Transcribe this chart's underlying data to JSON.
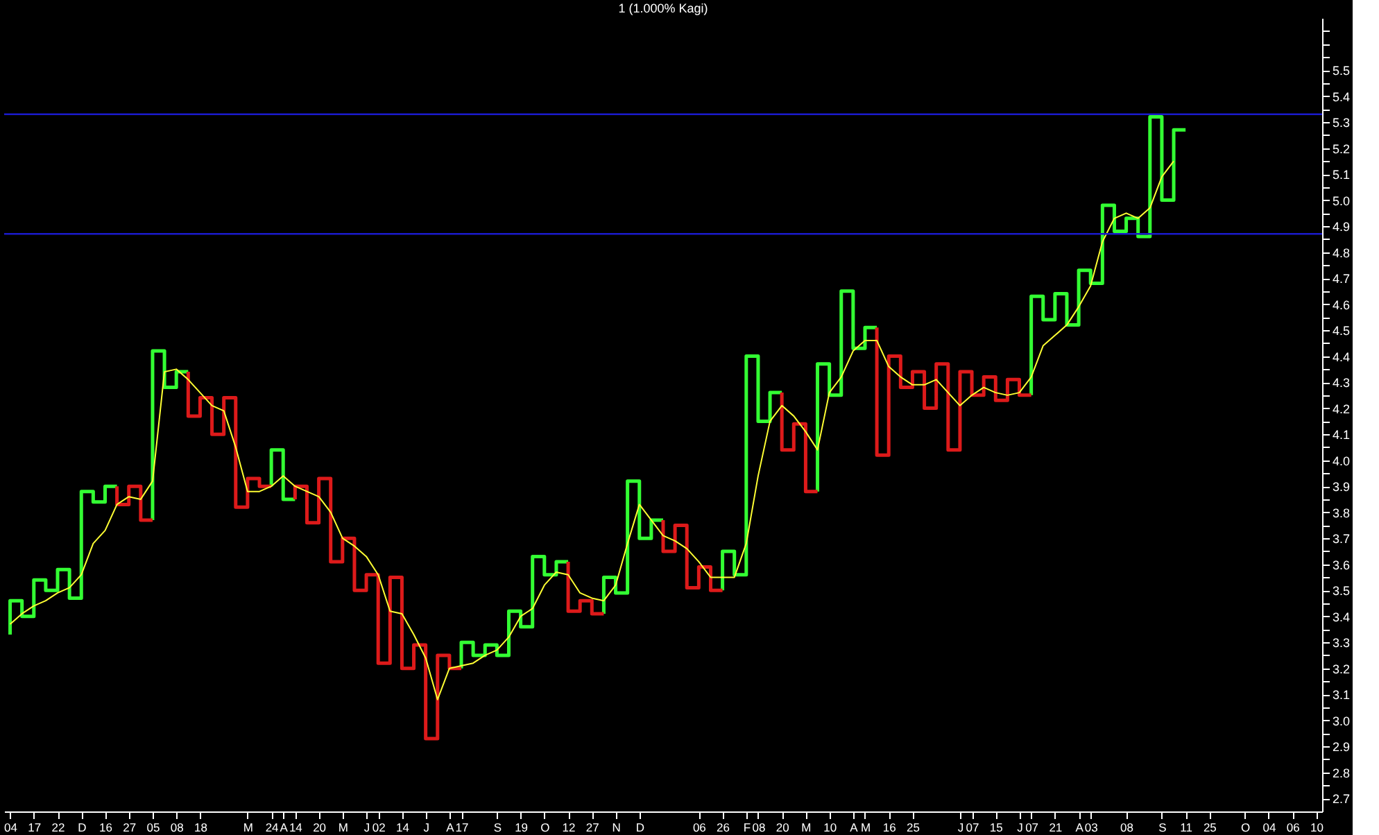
{
  "chart_data": {
    "type": "step",
    "title": "1 (1.000% Kagi)",
    "categories": [
      "04",
      null,
      "17",
      null,
      "22",
      null,
      "D",
      null,
      "16",
      null,
      "27",
      null,
      "05",
      null,
      "08",
      null,
      "18",
      null,
      null,
      null,
      "M",
      null,
      "24",
      "A",
      "14",
      null,
      "20",
      null,
      "M",
      null,
      "J",
      "02",
      null,
      "14",
      null,
      "J",
      null,
      "A",
      "17",
      null,
      null,
      "S",
      null,
      "19",
      null,
      "O",
      null,
      "12",
      null,
      "27",
      null,
      "N",
      null,
      "D",
      null,
      null,
      null,
      null,
      "06",
      null,
      "26",
      null,
      "F",
      "08",
      null,
      "20",
      null,
      "M",
      null,
      "10",
      null,
      "A",
      "M",
      null,
      "16",
      null,
      "25",
      null,
      null,
      null,
      "J",
      "07",
      null,
      "15",
      null,
      "J",
      "07",
      null,
      "21",
      null,
      "A",
      "03",
      null,
      null,
      "08",
      null,
      null,
      "S",
      null,
      "11",
      null,
      "25",
      null,
      null,
      "O",
      null,
      "04",
      null,
      "06",
      null,
      "10"
    ],
    "series": [
      {
        "color": "#33ff33",
        "values": [
          3.33,
          3.46,
          3.4,
          3.54,
          3.5,
          3.58,
          3.47,
          3.88,
          3.84,
          3.9,
          null,
          null,
          3.77,
          4.42,
          4.28,
          4.34,
          null,
          null,
          null,
          null,
          null,
          null,
          3.9,
          4.04,
          3.85,
          null,
          null,
          null,
          null,
          null,
          null,
          null,
          null,
          null,
          null,
          null,
          null,
          null,
          3.2,
          3.3,
          3.25,
          3.29,
          3.25,
          3.42,
          3.36,
          3.63,
          3.56,
          3.61,
          null,
          null,
          3.41,
          3.55,
          3.49,
          3.92,
          3.7,
          3.77,
          null,
          null,
          null,
          null,
          3.5,
          3.65,
          3.56,
          4.4,
          4.15,
          4.26,
          null,
          null,
          3.88,
          4.37,
          4.25,
          4.65,
          4.43,
          4.51,
          null,
          null,
          null,
          null,
          null,
          null,
          null,
          null,
          null,
          null,
          null,
          null,
          4.25,
          4.63,
          4.54,
          4.64,
          4.52,
          4.73,
          4.68,
          4.98,
          4.88,
          4.93,
          4.86,
          5.32,
          5.0,
          5.27,
          null,
          null,
          null,
          null,
          null,
          null,
          null,
          null,
          null,
          null,
          null
        ]
      },
      {
        "color": "#dd1a1a",
        "values": [
          null,
          null,
          null,
          null,
          null,
          null,
          null,
          null,
          null,
          3.9,
          3.83,
          3.9,
          3.77,
          null,
          null,
          4.34,
          4.17,
          4.24,
          4.1,
          4.24,
          3.82,
          3.93,
          3.9,
          null,
          3.85,
          3.9,
          3.76,
          3.93,
          3.61,
          3.7,
          3.5,
          3.56,
          3.22,
          3.55,
          3.2,
          3.29,
          2.93,
          3.25,
          3.2,
          null,
          null,
          null,
          null,
          null,
          null,
          null,
          null,
          3.61,
          3.42,
          3.46,
          3.41,
          null,
          null,
          null,
          null,
          3.77,
          3.65,
          3.75,
          3.51,
          3.59,
          3.5,
          null,
          null,
          null,
          null,
          4.26,
          4.04,
          4.14,
          3.88,
          null,
          null,
          null,
          null,
          4.51,
          4.02,
          4.4,
          4.28,
          4.34,
          4.2,
          4.37,
          4.04,
          4.34,
          4.25,
          4.32,
          4.23,
          4.31,
          4.25,
          null,
          null,
          null,
          null,
          null,
          null,
          null,
          null,
          null,
          null,
          null,
          null,
          null,
          null,
          null,
          null,
          null,
          null,
          null,
          null,
          null,
          null,
          null,
          null
        ]
      },
      {
        "type": "line",
        "color": "#ffff33",
        "values": [
          3.37,
          3.41,
          3.44,
          3.46,
          3.49,
          3.51,
          3.56,
          3.68,
          3.73,
          3.83,
          3.86,
          3.85,
          3.92,
          4.34,
          4.35,
          4.31,
          4.26,
          4.21,
          4.19,
          4.05,
          3.88,
          3.88,
          3.9,
          3.94,
          3.9,
          3.88,
          3.86,
          3.8,
          3.7,
          3.67,
          3.63,
          3.56,
          3.42,
          3.41,
          3.33,
          3.24,
          3.08,
          3.2,
          3.21,
          3.22,
          3.25,
          3.27,
          3.32,
          3.4,
          3.43,
          3.52,
          3.57,
          3.56,
          3.49,
          3.47,
          3.46,
          3.52,
          3.68,
          3.83,
          3.77,
          3.71,
          3.69,
          3.66,
          3.61,
          3.55,
          3.55,
          3.55,
          3.68,
          3.94,
          4.15,
          4.21,
          4.17,
          4.11,
          4.04,
          4.26,
          4.32,
          4.42,
          4.46,
          4.46,
          4.36,
          4.32,
          4.29,
          4.29,
          4.31,
          4.26,
          4.21,
          4.25,
          4.28,
          4.26,
          4.25,
          4.26,
          4.32,
          4.44,
          4.48,
          4.52,
          4.59,
          4.67,
          4.84,
          4.93,
          4.95,
          4.93,
          4.97,
          5.09,
          5.15,
          null,
          null,
          null,
          null,
          null,
          null,
          null,
          null,
          null,
          null,
          null,
          null
        ]
      }
    ],
    "ylim": [
      2.65,
      5.7
    ],
    "yticks": [
      2.7,
      {
        "value": 2.75,
        "label": null
      },
      2.8,
      {
        "value": 2.85,
        "label": null
      },
      2.9,
      {
        "value": 2.95,
        "label": null
      },
      {
        "value": 3,
        "label": "3.0"
      },
      {
        "value": 3.05,
        "label": null
      },
      3.1,
      {
        "value": 3.15,
        "label": null
      },
      3.2,
      {
        "value": 3.25,
        "label": null
      },
      3.3,
      {
        "value": 3.35,
        "label": null
      },
      3.4,
      {
        "value": 3.45,
        "label": null
      },
      3.5,
      {
        "value": 3.55,
        "label": null
      },
      3.6,
      {
        "value": 3.65,
        "label": null
      },
      3.7,
      {
        "value": 3.75,
        "label": null
      },
      3.8,
      {
        "value": 3.85,
        "label": null
      },
      3.9,
      {
        "value": 3.95,
        "label": null
      },
      {
        "value": 4,
        "label": "4.0"
      },
      {
        "value": 4.05,
        "label": null
      },
      4.1,
      {
        "value": 4.15,
        "label": null
      },
      4.2,
      {
        "value": 4.25,
        "label": null
      },
      4.3,
      {
        "value": 4.35,
        "label": null
      },
      4.4,
      {
        "value": 4.45,
        "label": null
      },
      4.5,
      {
        "value": 4.55,
        "label": null
      },
      4.6,
      {
        "value": 4.65,
        "label": null
      },
      4.7,
      {
        "value": 4.75,
        "label": null
      },
      4.8,
      {
        "value": 4.85,
        "label": null
      },
      4.9,
      {
        "value": 4.95,
        "label": null
      },
      {
        "value": 5,
        "label": "5.0"
      },
      {
        "value": 5.05,
        "label": null
      },
      5.1,
      {
        "value": 5.15,
        "label": null
      },
      5.2,
      {
        "value": 5.25,
        "label": null
      },
      5.3,
      {
        "value": 5.35,
        "label": null
      },
      5.4,
      {
        "value": 5.45,
        "label": null
      },
      5.5,
      {
        "value": 5.55,
        "label": null
      },
      {
        "value": 5.6,
        "label": null
      },
      {
        "value": 5.65,
        "label": null
      }
    ],
    "ref_lines": [
      {
        "axis": "y",
        "value": 5.33,
        "color": "#1a1acc"
      },
      {
        "axis": "y",
        "value": 4.87,
        "color": "#1a1acc"
      }
    ],
    "grid": false
  }
}
